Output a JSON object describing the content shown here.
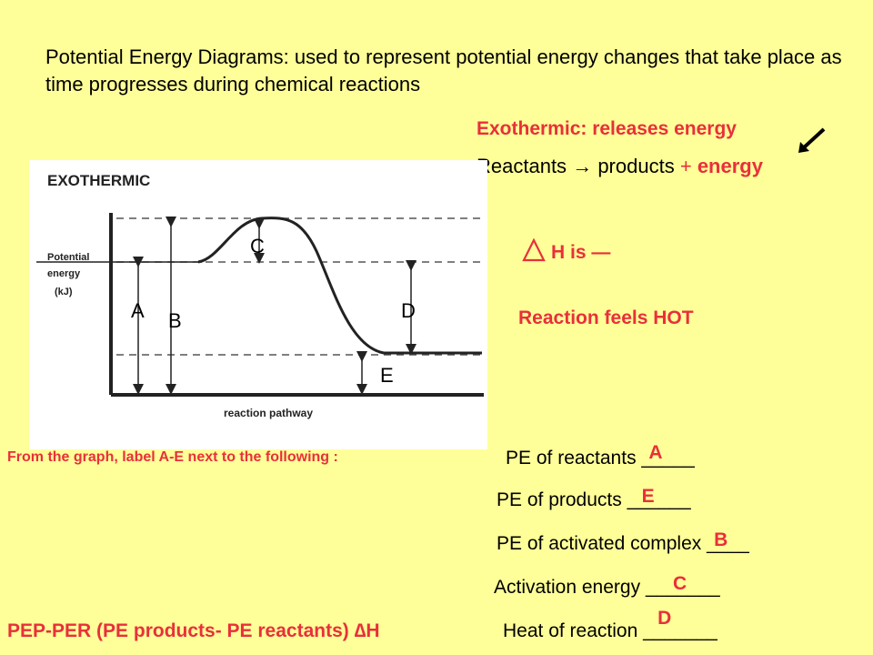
{
  "header": {
    "title": "Potential Energy Diagrams: used to represent potential energy changes that take place as time progresses during chemical reactions"
  },
  "exothermic": {
    "definition": "Exothermic: releases energy",
    "reactants": "Reactants",
    "arrow_glyph": "→",
    "products": "products",
    "plus": "+",
    "energy": "energy",
    "delta_h_text": "H is —",
    "feels": "Reaction feels HOT",
    "pointer_icon": "arrow-down-left-icon",
    "delta_icon": "triangle-delta-icon"
  },
  "diagram": {
    "heading": "EXOTHERMIC",
    "y_label_lines": [
      "Potential",
      "energy",
      "(kJ)"
    ],
    "x_label": "reaction pathway",
    "labels": {
      "A": "A",
      "B": "B",
      "C": "C",
      "D": "D",
      "E": "E"
    }
  },
  "questions": {
    "instruction": "From the graph, label A-E next to the following :",
    "items": [
      {
        "text": "PE of reactants",
        "blank": "_____",
        "answer": "A"
      },
      {
        "text": "PE of products",
        "blank": "______",
        "answer": "E"
      },
      {
        "text": "PE of activated complex",
        "blank": "____",
        "answer": "B"
      },
      {
        "text": "Activation energy",
        "blank": "_______",
        "answer": "C"
      },
      {
        "text": "Heat of reaction",
        "blank": "_______",
        "answer": "D"
      }
    ]
  },
  "footer": {
    "pep": "PEP-PER  (PE products- PE reactants) ∆H"
  },
  "colors": {
    "background": "#ffff99",
    "accent": "#e8303a"
  }
}
